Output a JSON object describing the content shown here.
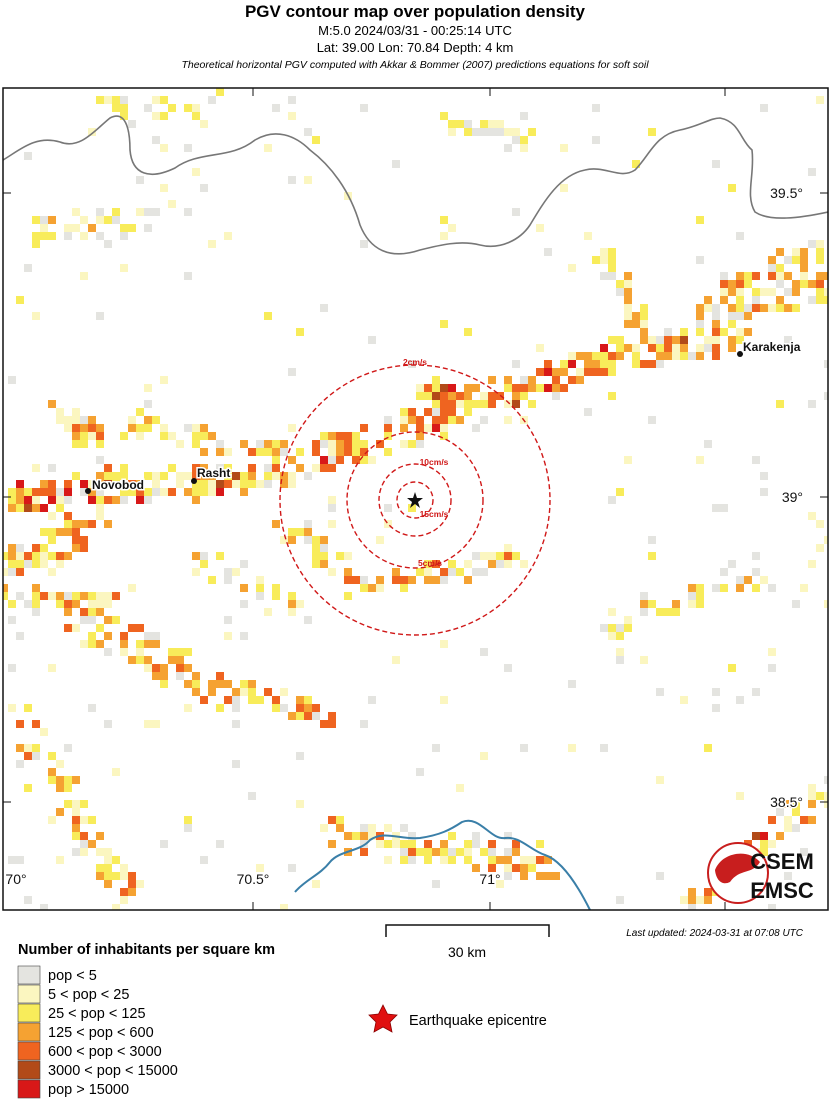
{
  "header": {
    "title": "PGV contour map over population density",
    "line1": "M:5.0 2024/03/31 - 00:25:14 UTC",
    "line2": "Lat: 39.00 Lon: 70.84 Depth: 4 km",
    "note": "Theoretical horizontal PGV computed with Akkar & Bommer (2007) predictions equations for soft soil"
  },
  "map": {
    "cities": [
      "Novobod",
      "Rasht",
      "Karakenja"
    ],
    "contours": [
      "2cm/s",
      "10cm/s",
      "15cm/s",
      "5cm/s"
    ],
    "lat_labels": [
      "39.5°",
      "39°",
      "38.5°"
    ],
    "lon_labels": [
      "70°",
      "70.5°",
      "71°"
    ],
    "logo": [
      "CSEM",
      "EMSC"
    ]
  },
  "scale_bar": "30 km",
  "last_updated": "Last updated: 2024-03-31 at 07:08 UTC",
  "legend": {
    "title": "Number of inhabitants per square km",
    "items": [
      {
        "label": "pop < 5",
        "color": "#e4e4e0"
      },
      {
        "label": "5 < pop < 25",
        "color": "#fbf6c0"
      },
      {
        "label": "25 < pop < 125",
        "color": "#f8ec5a"
      },
      {
        "label": "125 < pop < 600",
        "color": "#f5a232"
      },
      {
        "label": "600 < pop < 3000",
        "color": "#ef6420"
      },
      {
        "label": "3000 < pop < 15000",
        "color": "#b24a18"
      },
      {
        "label": "pop > 15000",
        "color": "#d81818"
      }
    ],
    "epicentre": "Earthquake epicentre"
  }
}
